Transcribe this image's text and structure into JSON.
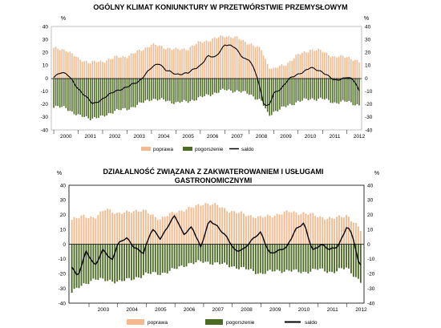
{
  "chart_data": [
    {
      "type": "bar",
      "title": "OGÓLNY KLIMAT KONIUNKTURY W PRZETWÓRSTWIE PRZEMYSŁOWYM",
      "ylabel_left": "%",
      "ylabel_right": "%",
      "ylim": [
        -40,
        40
      ],
      "yticks": [
        -40,
        -30,
        -20,
        -10,
        0,
        10,
        20,
        30,
        40
      ],
      "x_start": 1999.9,
      "x_end": 2012.6,
      "years": [
        "2000",
        "2001",
        "2002",
        "2003",
        "2004",
        "2005",
        "2006",
        "2007",
        "2008",
        "2009",
        "2010",
        "2011",
        "2012"
      ],
      "legend": {
        "poprawa": "poprawa",
        "pogorszenie": "pogorszenie",
        "saldo": "saldo"
      },
      "colors": {
        "poprawa": "#f5b98e",
        "pogorszenie": "#4b6a22",
        "saldo": "#000000"
      },
      "series_keypoints": [
        {
          "name": "poprawa",
          "x": [
            2000.0,
            2000.5,
            2001.0,
            2001.5,
            2002.0,
            2002.5,
            2003.0,
            2003.5,
            2004.0,
            2004.5,
            2005.0,
            2005.5,
            2006.0,
            2006.5,
            2007.0,
            2007.5,
            2008.0,
            2008.5,
            2008.8,
            2009.0,
            2009.5,
            2010.0,
            2010.5,
            2011.0,
            2011.5,
            2012.0,
            2012.5
          ],
          "values": [
            23,
            22,
            15,
            12,
            13,
            16,
            17,
            21,
            26,
            24,
            22,
            23,
            28,
            30,
            33,
            31,
            27,
            22,
            9,
            7,
            11,
            18,
            22,
            21,
            16,
            17,
            12
          ]
        },
        {
          "name": "pogorszenie",
          "x": [
            2000.0,
            2000.5,
            2001.0,
            2001.5,
            2002.0,
            2002.5,
            2003.0,
            2003.5,
            2004.0,
            2004.5,
            2005.0,
            2005.5,
            2006.0,
            2006.5,
            2007.0,
            2007.5,
            2008.0,
            2008.5,
            2008.8,
            2009.0,
            2009.5,
            2010.0,
            2010.5,
            2011.0,
            2011.5,
            2012.0,
            2012.5
          ],
          "values": [
            -22,
            -23,
            -29,
            -31,
            -30,
            -25,
            -24,
            -20,
            -16,
            -17,
            -19,
            -18,
            -15,
            -12,
            -9,
            -10,
            -12,
            -18,
            -29,
            -26,
            -22,
            -18,
            -16,
            -16,
            -19,
            -18,
            -21
          ]
        },
        {
          "name": "saldo",
          "x": [
            2000.0,
            2000.3,
            2000.6,
            2001.0,
            2001.3,
            2001.6,
            2002.0,
            2002.5,
            2003.0,
            2003.5,
            2004.0,
            2004.3,
            2004.6,
            2005.0,
            2005.5,
            2006.0,
            2006.3,
            2006.6,
            2007.0,
            2007.4,
            2007.8,
            2008.0,
            2008.3,
            2008.6,
            2008.8,
            2009.0,
            2009.3,
            2009.6,
            2010.0,
            2010.5,
            2011.0,
            2011.5,
            2012.0,
            2012.3,
            2012.5
          ],
          "values": [
            1,
            5,
            2,
            -8,
            -14,
            -20,
            -16,
            -10,
            -7,
            -2,
            8,
            12,
            6,
            3,
            4,
            10,
            17,
            16,
            26,
            24,
            15,
            14,
            3,
            -20,
            -22,
            -12,
            -8,
            -1,
            3,
            8,
            5,
            -2,
            1,
            -2,
            -10
          ]
        }
      ]
    },
    {
      "type": "bar",
      "title_lines": [
        "DZIAŁALNOŚĆ  ZWIĄZANA Z ZAKWATEROWANIEM I USŁUGAMI",
        "GASTRONOMICZNYMI"
      ],
      "ylabel_left": "%",
      "ylabel_right": "%",
      "ylim": [
        -40,
        40
      ],
      "yticks": [
        -40,
        -30,
        -20,
        -10,
        0,
        10,
        20,
        30,
        40
      ],
      "x_start": 2002.3,
      "x_end": 2012.6,
      "years": [
        "2003",
        "2004",
        "2005",
        "2006",
        "2007",
        "2008",
        "2009",
        "2010",
        "2011",
        "2012"
      ],
      "legend": {
        "poprawa": "poprawa",
        "pogorszenie": "pogorszenie",
        "saldo": "saldo"
      },
      "colors": {
        "poprawa": "#f5b98e",
        "pogorszenie": "#4b6a22",
        "saldo": "#000000"
      },
      "series_keypoints": [
        {
          "name": "poprawa",
          "x": [
            2002.4,
            2002.8,
            2003.2,
            2003.6,
            2004.0,
            2004.5,
            2005.0,
            2005.5,
            2006.0,
            2006.5,
            2007.0,
            2007.5,
            2008.0,
            2008.5,
            2009.0,
            2009.5,
            2010.0,
            2010.5,
            2011.0,
            2011.5,
            2012.0,
            2012.5
          ],
          "values": [
            16,
            20,
            17,
            25,
            20,
            23,
            22,
            17,
            22,
            24,
            28,
            26,
            22,
            20,
            18,
            20,
            22,
            21,
            19,
            17,
            20,
            9
          ]
        },
        {
          "name": "pogorszenie",
          "x": [
            2002.4,
            2002.8,
            2003.2,
            2003.6,
            2004.0,
            2004.5,
            2005.0,
            2005.5,
            2006.0,
            2006.5,
            2007.0,
            2007.5,
            2008.0,
            2008.5,
            2009.0,
            2009.5,
            2010.0,
            2010.5,
            2011.0,
            2011.5,
            2012.0,
            2012.5
          ],
          "values": [
            -32,
            -28,
            -23,
            -25,
            -25,
            -24,
            -20,
            -20,
            -17,
            -13,
            -12,
            -13,
            -15,
            -17,
            -20,
            -18,
            -18,
            -19,
            -17,
            -19,
            -16,
            -26
          ]
        },
        {
          "name": "saldo",
          "x": [
            2002.4,
            2002.6,
            2002.9,
            2003.2,
            2003.5,
            2003.8,
            2004.0,
            2004.3,
            2004.6,
            2004.9,
            2005.2,
            2005.5,
            2005.8,
            2006.0,
            2006.3,
            2006.6,
            2006.9,
            2007.2,
            2007.5,
            2007.8,
            2008.1,
            2008.4,
            2008.7,
            2009.0,
            2009.3,
            2009.6,
            2009.9,
            2010.2,
            2010.5,
            2010.8,
            2011.1,
            2011.4,
            2011.7,
            2012.0,
            2012.2,
            2012.4,
            2012.55
          ],
          "values": [
            -15,
            -22,
            -5,
            -15,
            -3,
            -12,
            0,
            5,
            -3,
            -6,
            11,
            3,
            14,
            20,
            6,
            12,
            -2,
            16,
            12,
            5,
            -5,
            -3,
            3,
            8,
            -6,
            -5,
            -2,
            10,
            14,
            -4,
            0,
            -4,
            -1,
            12,
            6,
            -12,
            -15
          ]
        }
      ]
    }
  ]
}
